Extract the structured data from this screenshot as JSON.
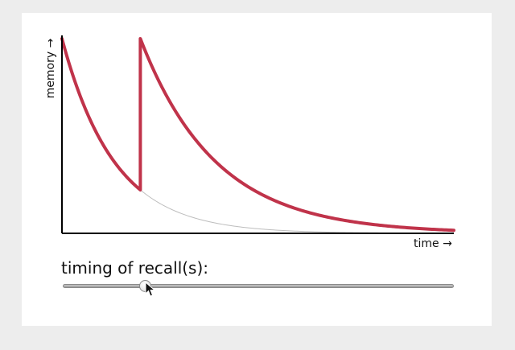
{
  "chart_data": {
    "type": "line",
    "xlabel": "time →",
    "ylabel": "memory →",
    "x_range": [
      0,
      1
    ],
    "y_range": [
      0,
      1
    ],
    "recall_times": [
      0.2
    ],
    "decay_rate_initial": 7.5,
    "decay_rate_after_recall": 5.2,
    "series": [
      {
        "values": "memory with recall"
      },
      {
        "values": "memory without recall"
      }
    ],
    "colors": {
      "recall_curve": "#c0334a",
      "baseline_curve": "#bdbdbd",
      "axis": "#000000"
    }
  },
  "slider": {
    "label": "timing of recall(s):",
    "value_fraction": 0.2
  },
  "icons": {
    "cursor": "arrow-cursor-icon"
  }
}
